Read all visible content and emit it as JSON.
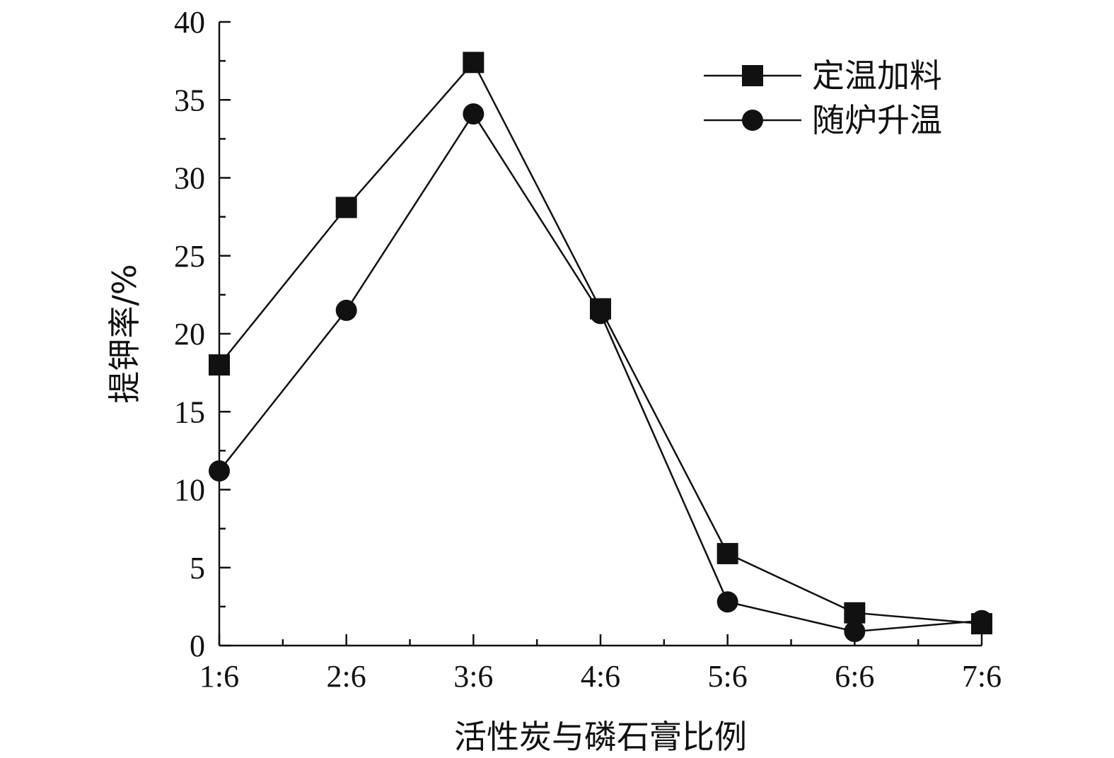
{
  "chart_data": {
    "type": "line",
    "categories": [
      "1:6",
      "2:6",
      "3:6",
      "4:6",
      "5:6",
      "6:6",
      "7:6"
    ],
    "xlabel": "活性炭与磷石膏比例",
    "ylabel": "提钾率/%",
    "ylim": [
      0,
      40
    ],
    "yticks": [
      0,
      5,
      10,
      15,
      20,
      25,
      30,
      35,
      40
    ],
    "grid": false,
    "legend": "top-right",
    "series": [
      {
        "name": "定温加料",
        "marker": "square",
        "color": "#111111",
        "values": [
          18.0,
          28.1,
          37.4,
          21.6,
          5.9,
          2.1,
          1.4
        ]
      },
      {
        "name": "随炉升温",
        "marker": "circle",
        "color": "#111111",
        "values": [
          11.2,
          21.5,
          34.1,
          21.3,
          2.8,
          0.9,
          1.6
        ]
      }
    ]
  }
}
